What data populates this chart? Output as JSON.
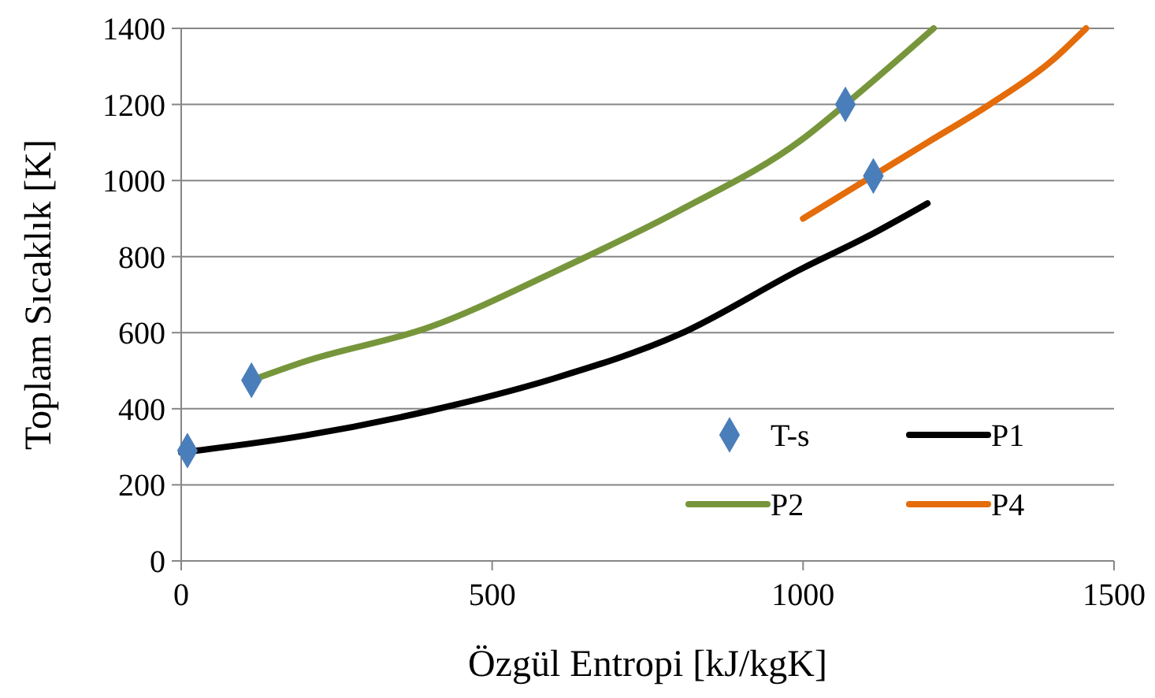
{
  "chart_data": {
    "type": "line",
    "xlabel": "Özgül Entropi [kJ/kgK]",
    "ylabel": "Toplam Sıcaklık [K]",
    "xlim": [
      0,
      1500
    ],
    "xticks": [
      0,
      500,
      1000,
      1500
    ],
    "ylim": [
      0,
      1400
    ],
    "yticks": [
      0,
      200,
      400,
      600,
      800,
      1000,
      1200,
      1400
    ],
    "grid": "y",
    "legend": "bottom right",
    "series": [
      {
        "name": "T-s",
        "type": "scatter",
        "marker": "diamond",
        "color": "#4a7ebb",
        "x": [
          10,
          113,
          1068,
          1113
        ],
        "values": [
          290,
          475,
          1200,
          1012
        ]
      },
      {
        "name": "P1",
        "color": "#000000",
        "x": [
          0,
          200,
          400,
          600,
          800,
          1000,
          1100,
          1200
        ],
        "values": [
          285,
          330,
          395,
          480,
          595,
          770,
          850,
          940
        ]
      },
      {
        "name": "P2",
        "color": "#77963c",
        "x": [
          113,
          200,
          400,
          600,
          800,
          1000,
          1068,
          1210
        ],
        "values": [
          475,
          525,
          615,
          760,
          920,
          1110,
          1200,
          1400
        ]
      },
      {
        "name": "P4",
        "color": "#e46c0a",
        "x": [
          1000,
          1100,
          1200,
          1300,
          1400,
          1455
        ],
        "values": [
          900,
          1000,
          1100,
          1200,
          1315,
          1400
        ]
      }
    ]
  }
}
